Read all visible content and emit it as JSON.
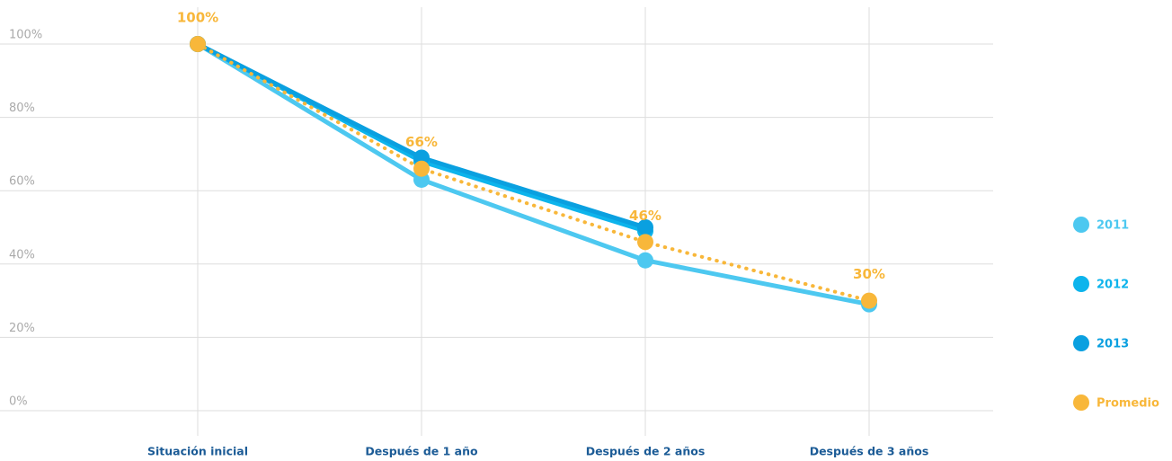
{
  "chart_data": {
    "type": "line",
    "categories": [
      "Situación inicial",
      "Después de 1 año",
      "Después de 2 años",
      "Después de 3 años"
    ],
    "series": [
      {
        "name": "2011",
        "color": "#4dc8f0",
        "values": [
          100,
          63,
          41,
          29
        ]
      },
      {
        "name": "2012",
        "color": "#0db4ec",
        "values": [
          100,
          68,
          49,
          null
        ]
      },
      {
        "name": "2013",
        "color": "#0aa0e0",
        "values": [
          100,
          69,
          50,
          null
        ]
      },
      {
        "name": "Promedio",
        "color": "#f8b73a",
        "dotted": true,
        "values": [
          100,
          66,
          46,
          30
        ],
        "value_labels": [
          "100%",
          "66%",
          "46%",
          "30%"
        ]
      }
    ],
    "ylim": [
      0,
      100
    ],
    "yticks": [
      {
        "value": 0,
        "label": "0%"
      },
      {
        "value": 20,
        "label": "20%"
      },
      {
        "value": 40,
        "label": "40%"
      },
      {
        "value": 60,
        "label": "60%"
      },
      {
        "value": 80,
        "label": "80%"
      },
      {
        "value": 100,
        "label": "100%"
      }
    ],
    "grid": true,
    "legend": "right"
  }
}
